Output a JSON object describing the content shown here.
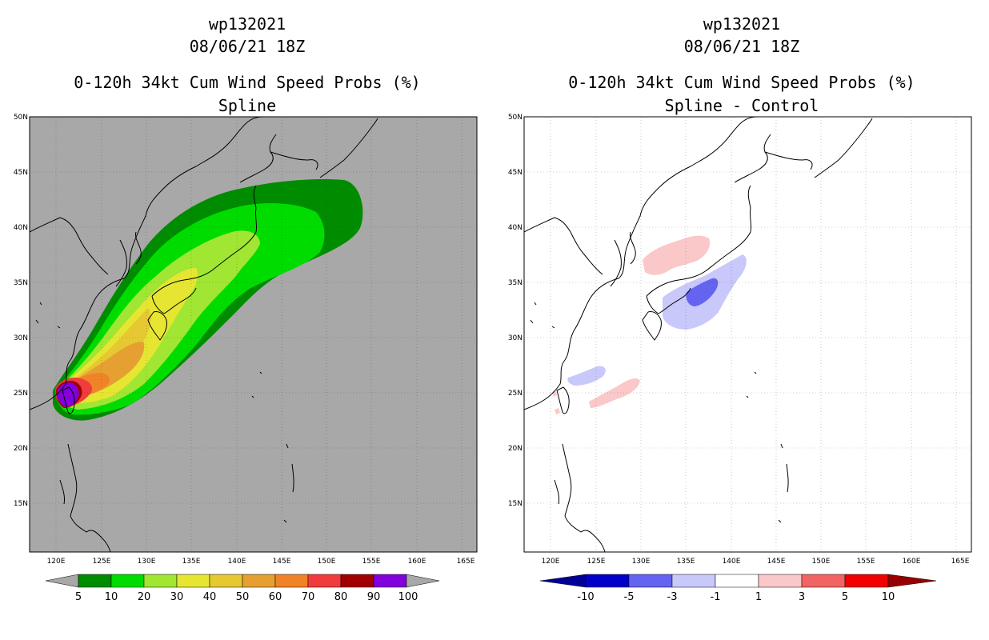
{
  "panels": [
    {
      "id": "left",
      "storm_id": "wp132021",
      "datetime": "08/06/21 18Z",
      "product_title": "0-120h 34kt Cum Wind Speed Probs (%)",
      "subtitle": "Spline",
      "background": "#a8a8a8",
      "colorbar": {
        "colors": [
          "#008c00",
          "#00dc00",
          "#a0e632",
          "#e6e632",
          "#e6c832",
          "#e6a032",
          "#f08228",
          "#f03c3c",
          "#a00000",
          "#8200dc"
        ],
        "labels": [
          "5",
          "10",
          "20",
          "30",
          "40",
          "50",
          "60",
          "70",
          "80",
          "90",
          "100"
        ],
        "end_left": "#a8a8a8",
        "end_right": "#a8a8a8"
      }
    },
    {
      "id": "right",
      "storm_id": "wp132021",
      "datetime": "08/06/21 18Z",
      "product_title": "0-120h 34kt Cum Wind Speed Probs (%)",
      "subtitle": "Spline - Control",
      "background": "#ffffff",
      "colorbar": {
        "colors": [
          "#0000c8",
          "#6464f0",
          "#c8c8fa",
          "#ffffff",
          "#fac8c8",
          "#f06464",
          "#f00000"
        ],
        "labels": [
          "-10",
          "-5",
          "-3",
          "-1",
          "1",
          "3",
          "5",
          "10"
        ],
        "end_left": "#000096",
        "end_right": "#960000"
      }
    }
  ],
  "map": {
    "lat_labels": [
      "50N",
      "45N",
      "40N",
      "35N",
      "30N",
      "25N",
      "20N",
      "15N"
    ],
    "lon_labels": [
      "120E",
      "125E",
      "130E",
      "135E",
      "140E",
      "145E",
      "150E",
      "155E",
      "160E",
      "165E"
    ]
  }
}
